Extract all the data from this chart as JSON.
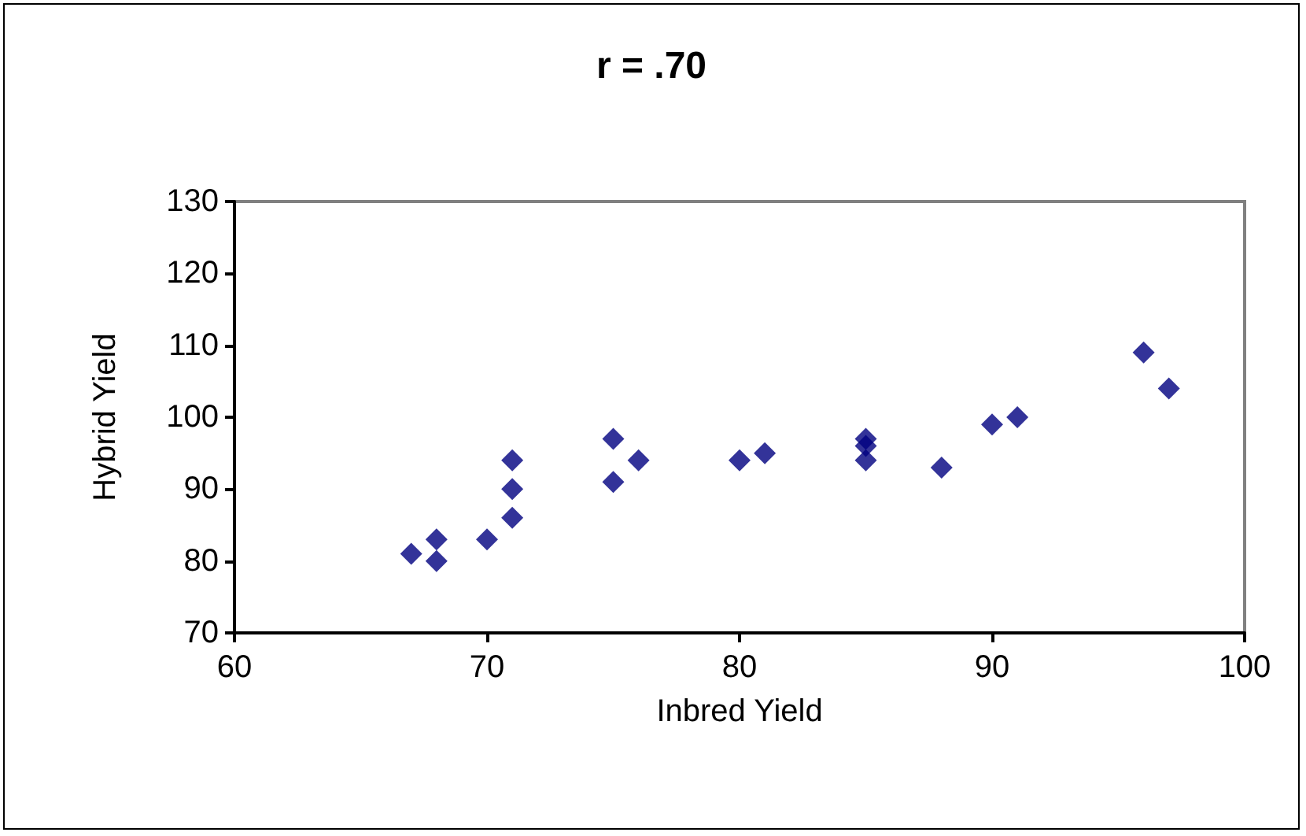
{
  "chart_data": {
    "type": "scatter",
    "title": "r = .70",
    "xlabel": "Inbred Yield",
    "ylabel": "Hybrid Yield",
    "x": [
      67,
      68,
      68,
      70,
      71,
      71,
      71,
      75,
      75,
      76,
      80,
      81,
      85,
      85,
      85,
      88,
      90,
      91,
      96,
      97
    ],
    "values": [
      81,
      83,
      80,
      83,
      86,
      90,
      94,
      97,
      91,
      94,
      94,
      95,
      97,
      96,
      94,
      93,
      99,
      100,
      109,
      104
    ],
    "color": "#000080",
    "marker": "diamond",
    "xlim": [
      60,
      100
    ],
    "xticks": [
      60,
      70,
      80,
      90,
      100
    ],
    "ylim": [
      70,
      130
    ],
    "yticks": [
      70,
      80,
      90,
      100,
      110,
      120,
      130
    ],
    "grid": false
  }
}
